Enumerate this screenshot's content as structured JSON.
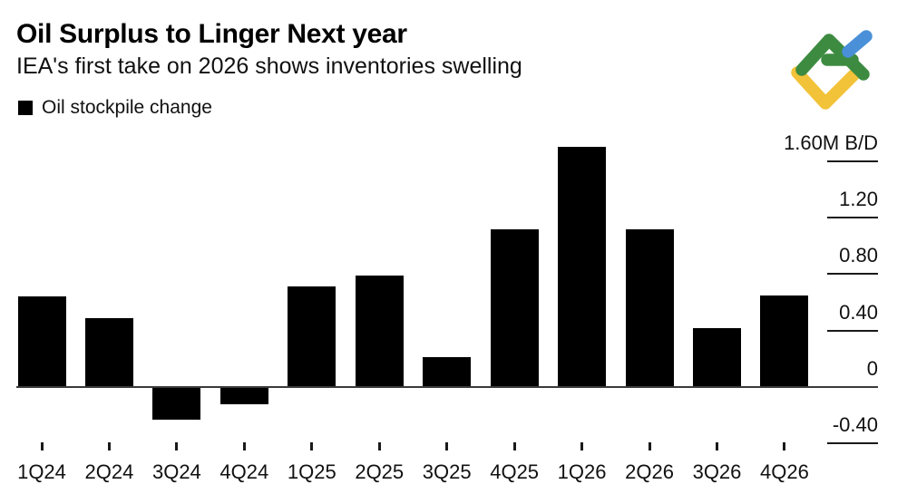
{
  "header": {
    "title": "Oil Surplus to Linger Next year",
    "subtitle": "IEA's first take on 2026 shows inventories swelling",
    "legend": {
      "label": "Oil stockpile change",
      "swatch_color": "#000000"
    }
  },
  "logo": {
    "name": "LiteFinance",
    "colors": {
      "green": "#3d8b40",
      "blue": "#4a90d8",
      "yellow": "#f2c238"
    }
  },
  "chart_data": {
    "type": "bar",
    "title": "Oil Surplus to Linger Next year",
    "subtitle": "IEA's first take on 2026 shows inventories swelling",
    "series_name": "Oil stockpile change",
    "unit": "M B/D",
    "categories": [
      "1Q24",
      "2Q24",
      "3Q24",
      "4Q24",
      "1Q25",
      "2Q25",
      "3Q25",
      "4Q25",
      "1Q26",
      "2Q26",
      "3Q26",
      "4Q26"
    ],
    "values": [
      0.64,
      0.49,
      -0.23,
      -0.12,
      0.71,
      0.79,
      0.21,
      1.12,
      1.7,
      1.12,
      0.42,
      0.65
    ],
    "bar_color": "#000000",
    "ylim": [
      -0.56,
      1.76
    ],
    "grid": "off",
    "legend_position": "top-left",
    "y_axis": {
      "side": "right",
      "ticks": [
        {
          "value": 1.6,
          "label": "1.60M B/D"
        },
        {
          "value": 1.2,
          "label": "1.20"
        },
        {
          "value": 0.8,
          "label": "0.80"
        },
        {
          "value": 0.4,
          "label": "0.40"
        },
        {
          "value": 0,
          "label": "0"
        },
        {
          "value": -0.4,
          "label": "-0.40"
        }
      ]
    }
  }
}
